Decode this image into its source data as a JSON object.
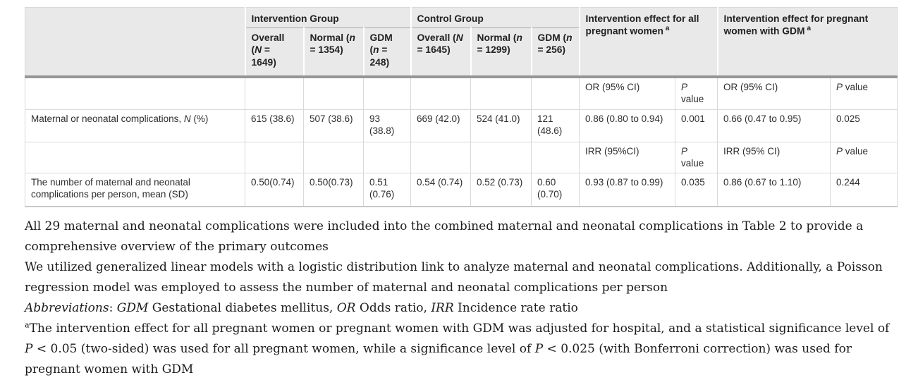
{
  "table": {
    "groups": {
      "intervention": "Intervention Group",
      "control": "Control Group",
      "effect_all": "Intervention effect for all pregnant women",
      "effect_gdm": "Intervention effect for pregnant women with GDM",
      "effect_sup": "a"
    },
    "subheaders": [
      {
        "pre": "Overall (",
        "it": "N",
        "post": " = 1649)"
      },
      {
        "pre": "Normal (",
        "it": "n",
        "post": " = 1354)"
      },
      {
        "pre": "GDM (",
        "it": "n",
        "post": " = 248)"
      },
      {
        "pre": "Overall (",
        "it": "N",
        "post": " = 1645)"
      },
      {
        "pre": "Normal (",
        "it": "n",
        "post": " = 1299)"
      },
      {
        "pre": "GDM (",
        "it": "n",
        "post": " = 256)"
      }
    ],
    "p_label": {
      "it": "P",
      "rest": " value"
    },
    "stat_rows": {
      "or": {
        "all": "OR (95% CI)",
        "gdm": "OR (95% CI)"
      },
      "irr": {
        "all": "IRR (95%CI)",
        "gdm": "IRR (95% CI)"
      }
    },
    "rows": [
      {
        "label_pre": "Maternal or neonatal complications, ",
        "label_it": "N",
        "label_post": " (%)",
        "cells": [
          "615 (38.6)",
          "507 (38.6)",
          "93 (38.8)",
          "669 (42.0)",
          "524 (41.0)",
          "121 (48.6)",
          "0.86 (0.80 to 0.94)",
          "0.001",
          "0.66 (0.47 to 0.95)",
          "0.025"
        ]
      },
      {
        "label_pre": "The number of maternal and neonatal complications per person, mean (SD)",
        "label_it": "",
        "label_post": "",
        "cells": [
          "0.50(0.74)",
          "0.50(0.73)",
          "0.51 (0.76)",
          "0.54 (0.74)",
          "0.52 (0.73)",
          "0.60 (0.70)",
          "0.93 (0.87 to 0.99)",
          "0.035",
          "0.86 (0.67 to 1.10)",
          "0.244"
        ]
      }
    ]
  },
  "footnotes": [
    {
      "sup": "",
      "segments": [
        {
          "t": "All 29 maternal and neonatal complications were included into the combined maternal and neonatal complications in Table 2 to provide a comprehensive overview of the primary outcomes"
        }
      ]
    },
    {
      "sup": "",
      "segments": [
        {
          "t": "We utilized generalized linear models with a logistic distribution link to analyze maternal and neonatal complications. Additionally, a Poisson regression model was employed to assess the number of maternal and neonatal complications per person"
        }
      ]
    },
    {
      "sup": "",
      "segments": [
        {
          "t": "Abbreviations",
          "i": true
        },
        {
          "t": ": "
        },
        {
          "t": "GDM",
          "i": true
        },
        {
          "t": " Gestational diabetes mellitus, "
        },
        {
          "t": "OR",
          "i": true
        },
        {
          "t": " Odds ratio, "
        },
        {
          "t": "IRR",
          "i": true
        },
        {
          "t": " Incidence rate ratio"
        }
      ]
    },
    {
      "sup": "a",
      "segments": [
        {
          "t": "The intervention effect for all pregnant women or pregnant women with GDM was adjusted for hospital, and a statistical significance level of "
        },
        {
          "t": "P",
          "i": true
        },
        {
          "t": " < 0.05 (two-sided) was used for all pregnant women, while a significance level of "
        },
        {
          "t": "P",
          "i": true
        },
        {
          "t": " < 0.025 (with Bonferroni correction) was used for pregnant women with GDM"
        }
      ]
    }
  ]
}
